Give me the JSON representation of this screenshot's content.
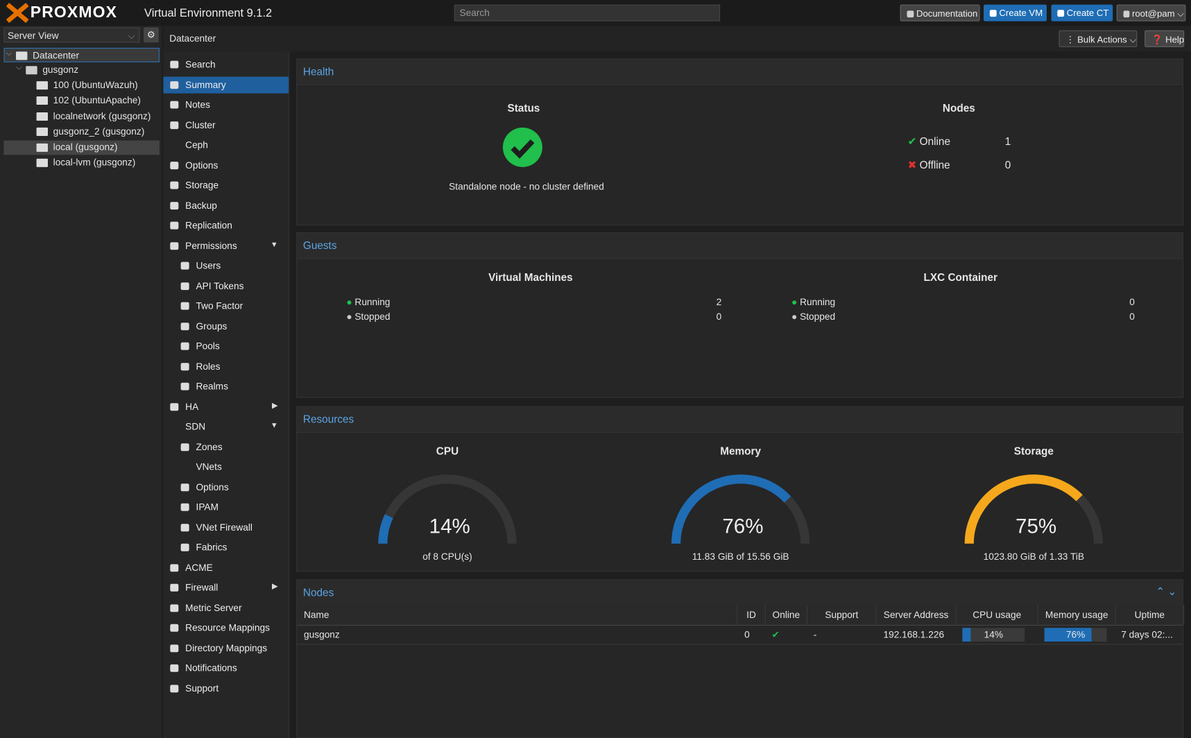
{
  "header": {
    "brand": "PROXMOX",
    "product": "Virtual Environment 9.1.2",
    "search_placeholder": "Search",
    "buttons": [
      "Documentation",
      "Create VM",
      "Create CT",
      "root@pam"
    ]
  },
  "tree": {
    "view": "Server View",
    "items": [
      {
        "label": "Datacenter",
        "level": 0
      },
      {
        "label": "gusgonz",
        "level": 1
      },
      {
        "label": "100 (UbuntuWazuh)",
        "level": 2
      },
      {
        "label": "102 (UbuntuApache)",
        "level": 2
      },
      {
        "label": "localnetwork (gusgonz)",
        "level": 2
      },
      {
        "label": "gusgonz_2 (gusgonz)",
        "level": 2
      },
      {
        "label": "local (gusgonz)",
        "level": 2
      },
      {
        "label": "local-lvm (gusgonz)",
        "level": 2
      }
    ]
  },
  "breadcrumb": "Datacenter",
  "bulk_actions": "Bulk Actions",
  "help": "Help",
  "menu": [
    "Search",
    "Summary",
    "Notes",
    "Cluster",
    "Ceph",
    "Options",
    "Storage",
    "Backup",
    "Replication",
    "Permissions",
    "Users",
    "API Tokens",
    "Two Factor",
    "Groups",
    "Pools",
    "Roles",
    "Realms",
    "HA",
    "SDN",
    "Zones",
    "VNets",
    "Options",
    "IPAM",
    "VNet Firewall",
    "Fabrics",
    "ACME",
    "Firewall",
    "Metric Server",
    "Resource Mappings",
    "Directory Mappings",
    "Notifications",
    "Support"
  ],
  "health": {
    "title": "Health",
    "status": {
      "heading": "Status",
      "text": "Standalone node - no cluster defined"
    },
    "nodes": {
      "heading": "Nodes",
      "online_label": "Online",
      "online": 1,
      "offline_label": "Offline",
      "offline": 0
    }
  },
  "guests": {
    "title": "Guests",
    "vm": {
      "heading": "Virtual Machines",
      "running_label": "Running",
      "running": 2,
      "stopped_label": "Stopped",
      "stopped": 0
    },
    "lxc": {
      "heading": "LXC Container",
      "running_label": "Running",
      "running": 0,
      "stopped_label": "Stopped",
      "stopped": 0
    }
  },
  "resources": {
    "title": "Resources",
    "gauges": [
      {
        "heading": "CPU",
        "value": 14,
        "value_label": "14%",
        "detail": "of 8 CPU(s)",
        "color": "#1f6db5"
      },
      {
        "heading": "Memory",
        "value": 76,
        "value_label": "76%",
        "detail": "11.83 GiB of 15.56 GiB",
        "color": "#1f6db5"
      },
      {
        "heading": "Storage",
        "value": 75,
        "value_label": "75%",
        "detail": "1023.80 GiB of 1.33 TiB",
        "color": "#f5a81c"
      }
    ]
  },
  "nodes_grid": {
    "title": "Nodes",
    "columns": [
      "Name",
      "ID",
      "Online",
      "Support",
      "Server Address",
      "CPU usage",
      "Memory usage",
      "Uptime"
    ],
    "rows": [
      {
        "name": "gusgonz",
        "id": 0,
        "support": "-",
        "address": "192.168.1.226",
        "cpu": {
          "value": 14,
          "label": "14%"
        },
        "memory": {
          "value": 76,
          "label": "76%"
        },
        "uptime": "7 days 02:..."
      }
    ]
  }
}
